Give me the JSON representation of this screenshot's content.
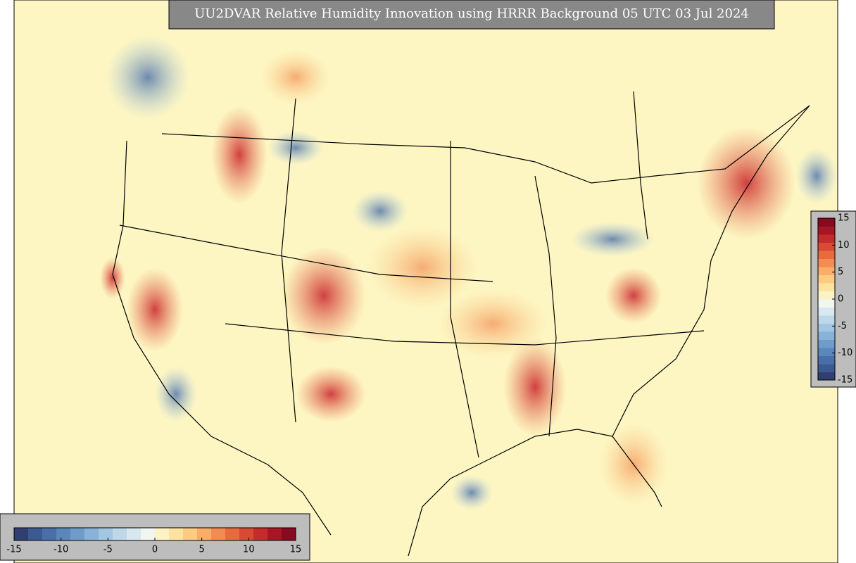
{
  "title": "UU2DVAR Relative Humidity Innovation using HRRR Background 05 UTC 03 Jul 2024",
  "colorbar_horizontal": {
    "lim": [
      -15,
      15
    ],
    "ticks": [
      -15,
      -10,
      -5,
      0,
      5,
      10,
      15
    ],
    "colors": [
      "#313f70",
      "#3b5a92",
      "#4a6fa8",
      "#5a86bb",
      "#6f9ccb",
      "#88b2d8",
      "#a3c6e2",
      "#bed8ea",
      "#d8e8f0",
      "#f2f6f0",
      "#fbf3c4",
      "#fde3a0",
      "#fdcb82",
      "#f9ad68",
      "#f28c52",
      "#e86b40",
      "#d84a33",
      "#c32c2a",
      "#a81524",
      "#880a20"
    ]
  },
  "colorbar_vertical": {
    "lim": [
      -15,
      15
    ],
    "ticks": [
      15,
      10,
      5,
      0,
      -5,
      -10,
      -15
    ],
    "colors": [
      "#313f70",
      "#3b5a92",
      "#4a6fa8",
      "#5a86bb",
      "#6f9ccb",
      "#88b2d8",
      "#a3c6e2",
      "#bed8ea",
      "#d8e8f0",
      "#f2f6f0",
      "#fbf3c4",
      "#fde3a0",
      "#fdcb82",
      "#f9ad68",
      "#f28c52",
      "#e86b40",
      "#d84a33",
      "#c32c2a",
      "#a81524",
      "#880a20"
    ]
  }
}
